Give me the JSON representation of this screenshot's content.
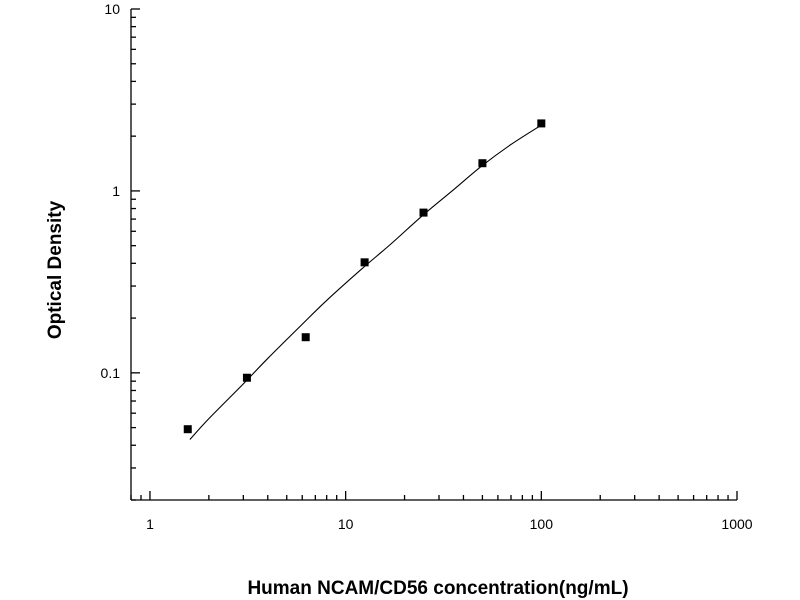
{
  "chart_data": {
    "type": "scatter",
    "xlabel": "Human NCAM/CD56 concentration(ng/mL)",
    "ylabel": "Optical Density",
    "x_scale": "log",
    "y_scale": "log",
    "xlim": [
      0.8,
      1000
    ],
    "ylim": [
      0.02,
      10
    ],
    "x_ticks": [
      {
        "value": 1,
        "label": "1"
      },
      {
        "value": 10,
        "label": "10"
      },
      {
        "value": 100,
        "label": "100"
      },
      {
        "value": 1000,
        "label": "1000"
      }
    ],
    "y_ticks": [
      {
        "value": 0.1,
        "label": "0.1"
      },
      {
        "value": 1,
        "label": "1"
      },
      {
        "value": 10,
        "label": "10"
      }
    ],
    "grid": false,
    "series": [
      {
        "kind": "points",
        "marker": "square",
        "color": "#000000",
        "x": [
          1.56,
          3.13,
          6.25,
          12.5,
          25,
          50,
          100
        ],
        "y": [
          0.049,
          0.094,
          0.157,
          0.405,
          0.76,
          1.42,
          2.35
        ]
      },
      {
        "kind": "fit-curve",
        "color": "#000000",
        "x": [
          1.6,
          2,
          3,
          4,
          6,
          8,
          12,
          17,
          25,
          35,
          50,
          70,
          100
        ],
        "y": [
          0.043,
          0.056,
          0.087,
          0.12,
          0.185,
          0.25,
          0.37,
          0.51,
          0.74,
          1.0,
          1.38,
          1.8,
          2.3
        ]
      }
    ]
  }
}
